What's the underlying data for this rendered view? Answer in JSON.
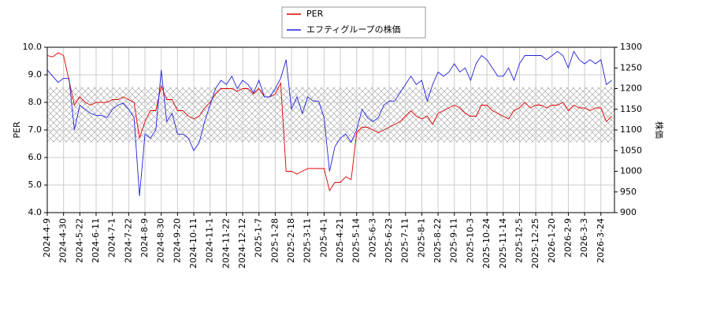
{
  "chart_data": {
    "type": "line",
    "categories": [
      "2024-4-9",
      null,
      null,
      "2024-4-30",
      null,
      null,
      "2024-5-22",
      null,
      null,
      "2024-6-11",
      null,
      null,
      "2024-7-1",
      null,
      null,
      "2024-7-22",
      null,
      null,
      "2024-8-9",
      null,
      null,
      "2024-8-30",
      null,
      null,
      "2024-9-20",
      null,
      null,
      "2024-10-11",
      null,
      null,
      "2024-11-1",
      null,
      null,
      "2024-11-22",
      null,
      null,
      "2024-12-12",
      null,
      null,
      "2025-1-7",
      null,
      null,
      "2025-1-28",
      null,
      null,
      "2025-2-18",
      null,
      null,
      "2025-3-11",
      null,
      null,
      "2025-4-1",
      null,
      null,
      "2025-4-21",
      null,
      null,
      "2025-5-14",
      null,
      null,
      "2025-6-3",
      null,
      null,
      "2025-6-23",
      null,
      null,
      "2025-7-11",
      null,
      null,
      "2025-8-1",
      null,
      null,
      "2025-8-22",
      null,
      null,
      "2025-9-11",
      null,
      null,
      "2025-10-3",
      null,
      null,
      "2025-10-24",
      null,
      null,
      "2025-11-14",
      null,
      null,
      "2025-12-5",
      null,
      null,
      "2025-12-25",
      null,
      null,
      "2026-1-20",
      null,
      null,
      "2026-2-9",
      null,
      null,
      "2026-3-3",
      null,
      null,
      "2026-3-24",
      null,
      null
    ],
    "series": [
      {
        "name": "PER",
        "color": "#dd0000",
        "values": [
          9.7,
          9.65,
          9.8,
          9.7,
          8.8,
          7.9,
          8.2,
          8.0,
          7.9,
          8.0,
          8.0,
          8.0,
          8.1,
          8.1,
          8.2,
          8.1,
          8.0,
          6.7,
          7.3,
          7.7,
          7.7,
          8.6,
          8.1,
          8.1,
          7.7,
          7.7,
          7.5,
          7.4,
          7.5,
          7.8,
          8.0,
          8.3,
          8.5,
          8.5,
          8.5,
          8.4,
          8.5,
          8.5,
          8.3,
          8.5,
          8.2,
          8.2,
          8.3,
          8.7,
          5.5,
          5.5,
          5.4,
          5.5,
          5.6,
          5.6,
          5.6,
          5.6,
          4.8,
          5.1,
          5.1,
          5.3,
          5.2,
          6.9,
          7.1,
          7.1,
          7.0,
          6.9,
          7.0,
          7.1,
          7.2,
          7.3,
          7.5,
          7.7,
          7.5,
          7.4,
          7.5,
          7.2,
          7.6,
          7.7,
          7.8,
          7.9,
          7.8,
          7.6,
          7.5,
          7.5,
          7.9,
          7.9,
          7.7,
          7.6,
          7.5,
          7.4,
          7.7,
          7.8,
          8.0,
          7.8,
          7.9,
          7.9,
          7.8,
          7.9,
          7.9,
          8.0,
          7.7,
          7.9,
          7.8,
          7.8,
          7.7,
          7.8,
          7.8,
          7.3,
          7.5
        ]
      },
      {
        "name": "エフティグループの株価",
        "color": "#2222dd",
        "axis": "y2",
        "values": [
          1245,
          1230,
          1215,
          1225,
          1225,
          1100,
          1160,
          1150,
          1140,
          1135,
          1135,
          1130,
          1150,
          1160,
          1165,
          1150,
          1130,
          940,
          1090,
          1080,
          1100,
          1245,
          1120,
          1140,
          1090,
          1090,
          1080,
          1050,
          1070,
          1120,
          1160,
          1200,
          1220,
          1210,
          1230,
          1200,
          1220,
          1210,
          1190,
          1220,
          1180,
          1180,
          1200,
          1225,
          1270,
          1150,
          1180,
          1140,
          1180,
          1170,
          1170,
          1130,
          1000,
          1060,
          1080,
          1090,
          1070,
          1100,
          1150,
          1130,
          1120,
          1130,
          1160,
          1170,
          1170,
          1190,
          1210,
          1230,
          1210,
          1220,
          1170,
          1210,
          1240,
          1230,
          1240,
          1260,
          1240,
          1250,
          1220,
          1260,
          1280,
          1270,
          1250,
          1230,
          1230,
          1250,
          1220,
          1260,
          1280,
          1280,
          1280,
          1280,
          1270,
          1280,
          1290,
          1280,
          1250,
          1290,
          1270,
          1260,
          1270,
          1260,
          1270,
          1210,
          1220
        ]
      }
    ],
    "ylabel": "PER",
    "y2label": "株価",
    "ylim": [
      4,
      10
    ],
    "yticks": [
      {
        "value": 4,
        "label": "4.0"
      },
      {
        "value": 5,
        "label": "5.0"
      },
      {
        "value": 6,
        "label": "6.0"
      },
      {
        "value": 7,
        "label": "7.0"
      },
      {
        "value": 8,
        "label": "8.0"
      },
      {
        "value": 9,
        "label": "9.0"
      },
      {
        "value": 10,
        "label": "10.0"
      }
    ],
    "y2lim": [
      900,
      1300
    ],
    "y2ticks": [
      900,
      950,
      1000,
      1050,
      1100,
      1150,
      1200,
      1250,
      1300
    ],
    "shaded_range": [
      6.55,
      8.55
    ],
    "grid": true,
    "legend": "top"
  }
}
